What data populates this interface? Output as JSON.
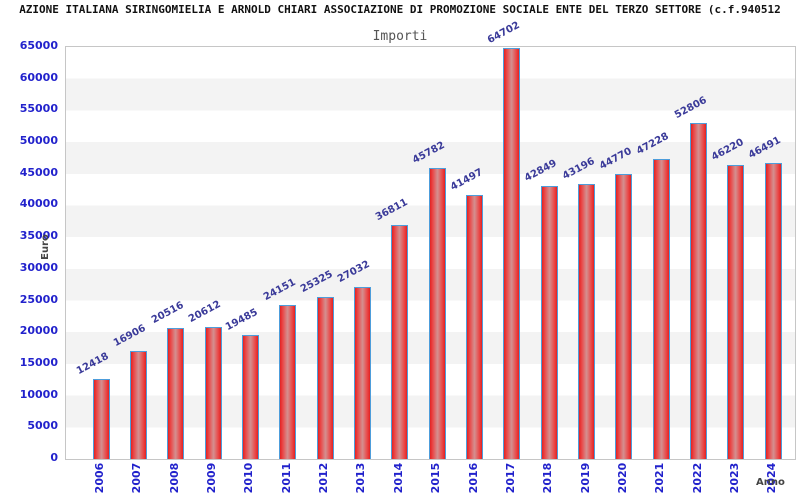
{
  "title": "AZIONE ITALIANA SIRINGOMIELIA E ARNOLD CHIARI ASSOCIAZIONE DI PROMOZIONE SOCIALE ENTE DEL TERZO SETTORE (c.f.940512",
  "chart_data": {
    "type": "bar",
    "title": "Importi",
    "xlabel": "Anno",
    "ylabel": "Euro",
    "categories": [
      "2006",
      "2007",
      "2008",
      "2009",
      "2010",
      "2011",
      "2012",
      "2013",
      "2014",
      "2015",
      "2016",
      "2017",
      "2018",
      "2019",
      "2020",
      "2021",
      "2022",
      "2023",
      "2024"
    ],
    "values": [
      12418,
      16906,
      20516,
      20612,
      19485,
      24151,
      25325,
      27032,
      36811,
      45782,
      41497,
      64702,
      42849,
      43196,
      44770,
      47228,
      52806,
      46220,
      46491
    ],
    "ylim": [
      0,
      65000
    ],
    "ytick_step": 5000,
    "grid": "horizontal-bands",
    "legend": "none",
    "colors": {
      "bar_fill": "#e32222",
      "bar_fill_center": "#d49090",
      "bar_border": "#4d9ddb",
      "tick_label": "#2222cc",
      "value_label": "#3a3a99",
      "band": "#f3f3f3",
      "plot_border": "#c6c6c6",
      "axis_title": "#444444",
      "title_color": "#111111",
      "subtitle_color": "#555555"
    }
  }
}
